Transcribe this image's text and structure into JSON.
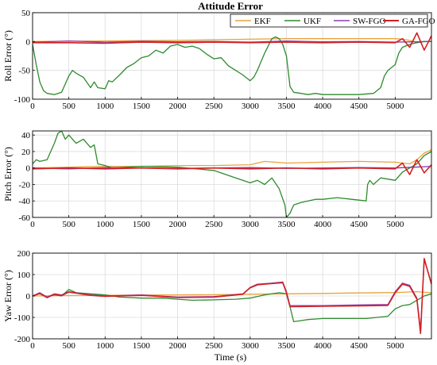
{
  "chart_data": [
    {
      "type": "line",
      "title": "Attitude Error",
      "xlabel": "",
      "ylabel": "Roll Error (°)",
      "xlim": [
        0,
        5500
      ],
      "ylim": [
        -100,
        50
      ],
      "xticks": [
        0,
        500,
        1000,
        1500,
        2000,
        2500,
        3000,
        3500,
        4000,
        4500,
        5000
      ],
      "yticks": [
        -100,
        -50,
        0,
        50
      ],
      "grid": true,
      "legend": {
        "position": "top-right",
        "orientation": "horizontal"
      },
      "series": [
        {
          "name": "EKF",
          "color": "#e8a33c",
          "x": [
            0,
            500,
            1000,
            1500,
            2000,
            2500,
            3000,
            3500,
            4000,
            4500,
            5000,
            5100,
            5200,
            5300,
            5400,
            5500
          ],
          "y": [
            0,
            0.5,
            1,
            1.5,
            2,
            3,
            4,
            5,
            5,
            5,
            5,
            4,
            2,
            -1,
            0,
            0
          ]
        },
        {
          "name": "UKF",
          "color": "#2e8b2e",
          "x": [
            0,
            50,
            100,
            150,
            200,
            300,
            400,
            500,
            550,
            600,
            700,
            800,
            850,
            900,
            1000,
            1050,
            1100,
            1200,
            1300,
            1400,
            1500,
            1600,
            1700,
            1800,
            1900,
            2000,
            2100,
            2200,
            2300,
            2400,
            2500,
            2600,
            2700,
            2800,
            2900,
            3000,
            3050,
            3100,
            3200,
            3300,
            3350,
            3400,
            3450,
            3500,
            3550,
            3600,
            3700,
            3800,
            3900,
            4000,
            4500,
            4700,
            4800,
            4850,
            4900,
            5000,
            5050,
            5100,
            5200,
            5300,
            5400,
            5500
          ],
          "y": [
            -5,
            -40,
            -70,
            -85,
            -90,
            -92,
            -88,
            -60,
            -50,
            -55,
            -62,
            -80,
            -70,
            -80,
            -82,
            -68,
            -70,
            -58,
            -45,
            -38,
            -28,
            -25,
            -15,
            -20,
            -8,
            -5,
            -10,
            -8,
            -12,
            -22,
            -30,
            -28,
            -42,
            -50,
            -58,
            -68,
            -62,
            -50,
            -20,
            5,
            8,
            5,
            -5,
            -25,
            -78,
            -88,
            -90,
            -92,
            -90,
            -92,
            -92,
            -90,
            -80,
            -60,
            -50,
            -40,
            -20,
            -10,
            -5,
            -2,
            0,
            0
          ]
        },
        {
          "name": "SW-FGO",
          "color": "#8a3fb5",
          "x": [
            0,
            500,
            1000,
            1500,
            2000,
            2500,
            3000,
            3500,
            4000,
            4500,
            5000,
            5500
          ],
          "y": [
            -1,
            1,
            -1,
            0.5,
            -0.5,
            0,
            -1,
            1,
            -0.5,
            0,
            -1,
            0
          ]
        },
        {
          "name": "GA-FGO",
          "color": "#d42020",
          "x": [
            0,
            500,
            1000,
            1500,
            2000,
            2500,
            3000,
            3500,
            4000,
            4500,
            5000,
            5100,
            5200,
            5300,
            5400,
            5500
          ],
          "y": [
            -2,
            -2,
            -3,
            -1,
            -2,
            -1,
            -2,
            -1,
            -2,
            -1,
            -2,
            5,
            -10,
            15,
            -15,
            10
          ]
        }
      ]
    },
    {
      "type": "line",
      "title": "",
      "xlabel": "",
      "ylabel": "Pitch Error (°)",
      "xlim": [
        0,
        5500
      ],
      "ylim": [
        -60,
        45
      ],
      "xticks": [
        0,
        500,
        1000,
        1500,
        2000,
        2500,
        3000,
        3500,
        4000,
        4500,
        5000
      ],
      "yticks": [
        -60,
        -40,
        -20,
        0,
        20,
        40
      ],
      "grid": true,
      "series": [
        {
          "name": "EKF",
          "color": "#e8a33c",
          "x": [
            0,
            500,
            1000,
            1500,
            2000,
            2500,
            3000,
            3200,
            3500,
            4000,
            4500,
            5000,
            5200,
            5300,
            5400,
            5500
          ],
          "y": [
            0,
            1,
            2,
            2,
            3,
            3,
            4,
            8,
            6,
            7,
            8,
            7,
            5,
            10,
            18,
            22
          ]
        },
        {
          "name": "UKF",
          "color": "#2e8b2e",
          "x": [
            0,
            50,
            100,
            200,
            300,
            350,
            400,
            450,
            500,
            600,
            700,
            800,
            850,
            900,
            1000,
            1100,
            1500,
            2000,
            2500,
            2800,
            3000,
            3100,
            3200,
            3300,
            3400,
            3480,
            3500,
            3550,
            3600,
            3700,
            3800,
            3900,
            4000,
            4200,
            4400,
            4600,
            4620,
            4650,
            4700,
            4800,
            5000,
            5100,
            5200,
            5300,
            5400,
            5500
          ],
          "y": [
            5,
            10,
            8,
            10,
            30,
            42,
            45,
            35,
            40,
            30,
            35,
            25,
            28,
            5,
            3,
            0,
            2,
            1,
            -3,
            -12,
            -18,
            -15,
            -20,
            -12,
            -25,
            -45,
            -60,
            -55,
            -45,
            -42,
            -40,
            -38,
            -38,
            -36,
            -38,
            -40,
            -20,
            -15,
            -20,
            -12,
            -15,
            -5,
            0,
            5,
            15,
            20
          ]
        },
        {
          "name": "SW-FGO",
          "color": "#8a3fb5",
          "x": [
            0,
            500,
            1000,
            1500,
            2000,
            2500,
            3000,
            3500,
            4000,
            4500,
            5000,
            5500
          ],
          "y": [
            0,
            -1,
            0.5,
            0,
            -0.5,
            0,
            0.5,
            -0.5,
            0,
            0.5,
            0,
            2
          ]
        },
        {
          "name": "GA-FGO",
          "color": "#d42020",
          "x": [
            0,
            500,
            1000,
            1500,
            2000,
            2500,
            3000,
            3500,
            4000,
            4500,
            5000,
            5100,
            5200,
            5300,
            5400,
            5500
          ],
          "y": [
            -1,
            0,
            -1,
            0,
            -1,
            0,
            -1,
            0,
            -1,
            0,
            -1,
            6,
            -8,
            10,
            -6,
            4
          ]
        }
      ]
    },
    {
      "type": "line",
      "title": "",
      "xlabel": "Time (s)",
      "ylabel": "Yaw Error (°)",
      "xlim": [
        0,
        5500
      ],
      "ylim": [
        -200,
        200
      ],
      "xticks": [
        0,
        500,
        1000,
        1500,
        2000,
        2500,
        3000,
        3500,
        4000,
        4500,
        5000
      ],
      "yticks": [
        -200,
        -100,
        0,
        100,
        200
      ],
      "grid": true,
      "series": [
        {
          "name": "EKF",
          "color": "#e8a33c",
          "x": [
            0,
            500,
            1000,
            1500,
            2000,
            2500,
            3000,
            3500,
            4000,
            4500,
            5000,
            5300,
            5500
          ],
          "y": [
            0,
            2,
            3,
            4,
            5,
            6,
            8,
            10,
            12,
            14,
            16,
            20,
            15
          ]
        },
        {
          "name": "UKF",
          "color": "#2e8b2e",
          "x": [
            0,
            100,
            200,
            300,
            400,
            500,
            600,
            800,
            1000,
            1200,
            1500,
            1800,
            2000,
            2200,
            2500,
            2800,
            3000,
            3200,
            3400,
            3500,
            3550,
            3600,
            3700,
            3800,
            4000,
            4300,
            4600,
            4900,
            5000,
            5100,
            5200,
            5300,
            5400,
            5500
          ],
          "y": [
            0,
            10,
            -5,
            5,
            0,
            30,
            15,
            10,
            5,
            -5,
            -10,
            -10,
            -15,
            -20,
            -18,
            -15,
            -10,
            5,
            15,
            10,
            -50,
            -120,
            -115,
            -110,
            -105,
            -105,
            -105,
            -95,
            -60,
            -45,
            -40,
            -20,
            0,
            10
          ]
        },
        {
          "name": "SW-FGO",
          "color": "#8a3fb5",
          "x": [
            0,
            100,
            200,
            300,
            400,
            500,
            800,
            1000,
            1500,
            2000,
            2500,
            2900,
            3000,
            3100,
            3300,
            3450,
            3500,
            3550,
            4000,
            4500,
            4900,
            5000,
            5100,
            5200,
            5300,
            5350,
            5400,
            5500
          ],
          "y": [
            0,
            15,
            -5,
            10,
            5,
            20,
            5,
            0,
            5,
            -5,
            -3,
            10,
            40,
            55,
            60,
            65,
            20,
            -45,
            -45,
            -42,
            -40,
            20,
            60,
            50,
            -10,
            -160,
            170,
            60
          ]
        },
        {
          "name": "GA-FGO",
          "color": "#d42020",
          "x": [
            0,
            100,
            200,
            300,
            400,
            500,
            800,
            1000,
            1500,
            2000,
            2500,
            2900,
            3000,
            3100,
            3300,
            3450,
            3500,
            3550,
            4000,
            4500,
            4900,
            5000,
            5100,
            5200,
            5300,
            5350,
            5400,
            5500
          ],
          "y": [
            0,
            12,
            -8,
            8,
            2,
            18,
            3,
            -2,
            3,
            -7,
            -5,
            8,
            38,
            52,
            58,
            62,
            15,
            -50,
            -48,
            -46,
            -44,
            15,
            55,
            45,
            -15,
            -175,
            175,
            55
          ]
        }
      ]
    }
  ]
}
